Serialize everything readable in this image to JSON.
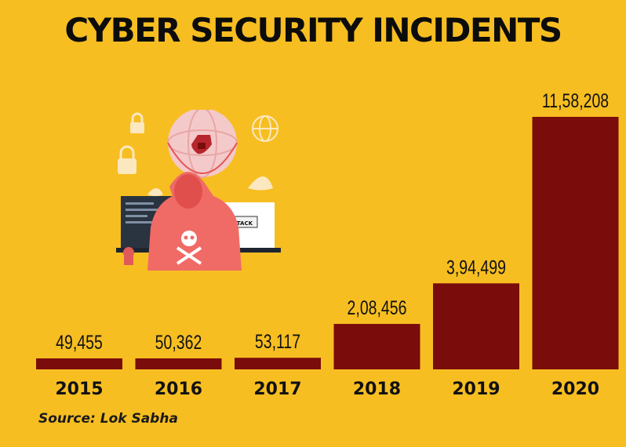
{
  "chart_data": {
    "type": "bar",
    "title": "CYBER SECURITY INCIDENTS",
    "categories": [
      "2015",
      "2016",
      "2017",
      "2018",
      "2019",
      "2020"
    ],
    "values": [
      49455,
      50362,
      53117,
      208456,
      394499,
      1158208
    ],
    "value_labels": [
      "49,455",
      "50,362",
      "53,117",
      "2,08,456",
      "3,94,499",
      "11,58,208"
    ],
    "xlabel": "",
    "ylabel": "",
    "grid": false,
    "legend": "none",
    "bar_color": "#7A0C0C"
  },
  "source": "Source: Lok Sabha",
  "background_color": "#F7BE22",
  "illustration": {
    "icons": [
      "padlock-icon",
      "globe-icon",
      "shield-icon",
      "skull-crossbones-icon",
      "hacker-figure",
      "laptop-icon"
    ],
    "text": "ATTACK"
  }
}
